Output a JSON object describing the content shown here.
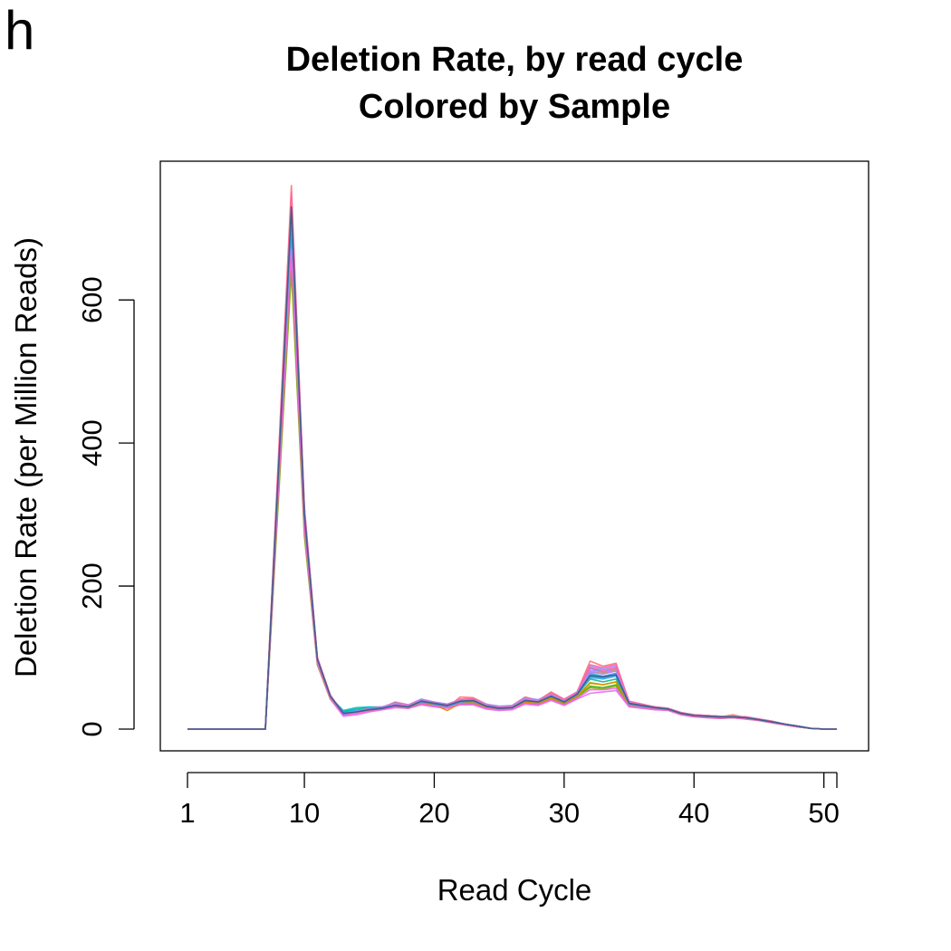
{
  "panel_label": "h",
  "chart_data": {
    "type": "line",
    "title": "Deletion Rate, by read cycle",
    "subtitle": "Colored by Sample",
    "xlabel": "Read Cycle",
    "ylabel": "Deletion Rate (per Million Reads)",
    "xlim": [
      1,
      51
    ],
    "ylim": [
      0,
      760
    ],
    "x_ticks": [
      1,
      10,
      20,
      30,
      40,
      50,
      51
    ],
    "x_tick_labels": [
      "1",
      "10",
      "20",
      "30",
      "40",
      "50",
      ""
    ],
    "y_ticks": [
      0,
      200,
      400,
      600
    ],
    "y_tick_labels": [
      "0",
      "200",
      "400",
      "600"
    ],
    "grid": false,
    "legend": "none",
    "colors": [
      "#f8766d",
      "#d89000",
      "#a3a500",
      "#39b600",
      "#00bf7d",
      "#00bfc4",
      "#00b0f6",
      "#9590ff",
      "#e76bf3",
      "#ff62bc",
      "#c77cff",
      "#7cae00",
      "#00a9ff",
      "#ff6c91",
      "#e58700",
      "#619cff",
      "#b983ff",
      "#35a2ff",
      "#f564e3",
      "#3c5a7a"
    ],
    "x": [
      1,
      2,
      3,
      4,
      5,
      6,
      7,
      8,
      9,
      10,
      11,
      12,
      13,
      14,
      15,
      16,
      17,
      18,
      19,
      20,
      21,
      22,
      23,
      24,
      25,
      26,
      27,
      28,
      29,
      30,
      31,
      32,
      33,
      34,
      35,
      36,
      37,
      38,
      39,
      40,
      41,
      42,
      43,
      44,
      45,
      46,
      47,
      48,
      49,
      50,
      51
    ],
    "base_profile": [
      0,
      0,
      0,
      0,
      0,
      0,
      0,
      350,
      690,
      290,
      95,
      45,
      22,
      25,
      28,
      30,
      33,
      32,
      38,
      35,
      33,
      38,
      38,
      32,
      30,
      31,
      40,
      38,
      45,
      38,
      48,
      72,
      70,
      75,
      35,
      32,
      30,
      28,
      22,
      18,
      18,
      17,
      17,
      16,
      13,
      10,
      7,
      4,
      1,
      0,
      0
    ],
    "series": [
      {
        "values": [
          0,
          0,
          0,
          0,
          0,
          0,
          0,
          380,
          760,
          310,
          100,
          48,
          20,
          25,
          30,
          30,
          38,
          34,
          40,
          35,
          30,
          45,
          44,
          35,
          30,
          33,
          45,
          40,
          52,
          42,
          52,
          95,
          88,
          92,
          38,
          35,
          30,
          28,
          22,
          20,
          18,
          17,
          20,
          16,
          13,
          10,
          6,
          3,
          1,
          0,
          0
        ]
      },
      {
        "values": [
          0,
          0,
          0,
          0,
          0,
          0,
          0,
          360,
          720,
          300,
          96,
          46,
          24,
          25,
          28,
          30,
          34,
          32,
          40,
          36,
          31,
          40,
          40,
          32,
          28,
          30,
          42,
          38,
          48,
          40,
          50,
          80,
          78,
          82,
          36,
          32,
          30,
          28,
          20,
          18,
          16,
          15,
          16,
          14,
          12,
          9,
          6,
          3,
          1,
          0,
          0
        ]
      },
      {
        "values": [
          0,
          0,
          0,
          0,
          0,
          0,
          0,
          340,
          680,
          285,
          93,
          44,
          22,
          24,
          27,
          29,
          32,
          30,
          36,
          34,
          32,
          36,
          37,
          31,
          29,
          30,
          38,
          36,
          44,
          37,
          46,
          65,
          62,
          66,
          34,
          31,
          29,
          27,
          21,
          18,
          18,
          17,
          17,
          15,
          12,
          9,
          6,
          3,
          1,
          0,
          0
        ]
      },
      {
        "values": [
          0,
          0,
          0,
          0,
          0,
          0,
          0,
          330,
          660,
          280,
          92,
          43,
          21,
          24,
          27,
          29,
          31,
          30,
          35,
          33,
          31,
          35,
          36,
          30,
          28,
          29,
          37,
          35,
          43,
          36,
          45,
          60,
          58,
          62,
          33,
          30,
          28,
          27,
          21,
          18,
          18,
          18,
          17,
          15,
          13,
          10,
          6,
          3,
          1,
          0,
          0
        ]
      },
      {
        "values": [
          0,
          0,
          0,
          0,
          0,
          0,
          0,
          345,
          690,
          290,
          94,
          44,
          25,
          28,
          30,
          31,
          34,
          31,
          38,
          35,
          33,
          37,
          38,
          33,
          30,
          31,
          40,
          38,
          45,
          38,
          48,
          70,
          66,
          70,
          35,
          32,
          30,
          28,
          22,
          19,
          18,
          17,
          17,
          16,
          13,
          10,
          7,
          4,
          1,
          0,
          0
        ]
      },
      {
        "values": [
          0,
          0,
          0,
          0,
          0,
          0,
          0,
          360,
          720,
          300,
          97,
          45,
          26,
          30,
          31,
          31,
          36,
          33,
          40,
          36,
          34,
          39,
          40,
          33,
          31,
          32,
          41,
          39,
          47,
          39,
          50,
          78,
          74,
          78,
          36,
          33,
          30,
          28,
          22,
          19,
          18,
          17,
          17,
          16,
          13,
          10,
          7,
          4,
          1,
          0,
          0
        ]
      },
      {
        "values": [
          0,
          0,
          0,
          0,
          0,
          0,
          0,
          365,
          730,
          305,
          98,
          46,
          24,
          26,
          29,
          30,
          35,
          33,
          41,
          37,
          35,
          40,
          41,
          34,
          31,
          32,
          42,
          40,
          48,
          40,
          51,
          85,
          80,
          85,
          38,
          34,
          31,
          29,
          23,
          20,
          19,
          18,
          18,
          17,
          14,
          11,
          7,
          4,
          1,
          0,
          0
        ]
      },
      {
        "values": [
          0,
          0,
          0,
          0,
          0,
          0,
          0,
          370,
          740,
          305,
          99,
          47,
          23,
          25,
          29,
          31,
          37,
          34,
          42,
          38,
          35,
          41,
          42,
          35,
          32,
          33,
          44,
          41,
          50,
          41,
          52,
          88,
          84,
          88,
          38,
          34,
          31,
          29,
          23,
          20,
          19,
          18,
          18,
          17,
          14,
          11,
          7,
          4,
          1,
          0,
          0
        ]
      },
      {
        "values": [
          0,
          0,
          0,
          0,
          0,
          0,
          0,
          330,
          650,
          275,
          90,
          42,
          18,
          20,
          24,
          27,
          30,
          29,
          34,
          31,
          29,
          34,
          34,
          28,
          26,
          27,
          35,
          33,
          40,
          33,
          42,
          50,
          52,
          54,
          31,
          29,
          27,
          26,
          20,
          17,
          16,
          15,
          16,
          14,
          12,
          9,
          6,
          3,
          1,
          0,
          0
        ]
      },
      {
        "values": [
          0,
          0,
          0,
          0,
          0,
          0,
          0,
          375,
          750,
          310,
          100,
          47,
          22,
          25,
          29,
          31,
          36,
          33,
          41,
          37,
          34,
          42,
          43,
          34,
          31,
          32,
          43,
          40,
          50,
          41,
          52,
          90,
          86,
          90,
          39,
          35,
          31,
          29,
          23,
          20,
          19,
          18,
          18,
          17,
          14,
          11,
          7,
          4,
          1,
          0,
          0
        ]
      },
      {
        "values": [
          0,
          0,
          0,
          0,
          0,
          0,
          0,
          365,
          730,
          300,
          98,
          46,
          21,
          24,
          28,
          30,
          35,
          32,
          40,
          36,
          33,
          40,
          41,
          33,
          30,
          31,
          41,
          39,
          47,
          39,
          50,
          82,
          80,
          84,
          37,
          33,
          30,
          28,
          22,
          19,
          18,
          17,
          18,
          16,
          13,
          10,
          7,
          4,
          1,
          0,
          0
        ]
      },
      {
        "values": [
          0,
          0,
          0,
          0,
          0,
          0,
          0,
          320,
          640,
          270,
          90,
          42,
          21,
          23,
          27,
          29,
          31,
          29,
          35,
          33,
          31,
          35,
          35,
          30,
          28,
          29,
          37,
          35,
          42,
          35,
          45,
          58,
          56,
          60,
          32,
          30,
          28,
          27,
          21,
          18,
          17,
          16,
          16,
          15,
          12,
          9,
          6,
          3,
          1,
          0,
          0
        ]
      },
      {
        "values": [
          0,
          0,
          0,
          0,
          0,
          0,
          0,
          355,
          710,
          295,
          96,
          45,
          23,
          25,
          28,
          30,
          33,
          31,
          38,
          35,
          32,
          38,
          39,
          32,
          29,
          30,
          40,
          38,
          46,
          38,
          48,
          74,
          72,
          76,
          35,
          32,
          30,
          28,
          22,
          19,
          18,
          17,
          17,
          16,
          13,
          10,
          7,
          4,
          1,
          0,
          0
        ]
      },
      {
        "values": [
          0,
          0,
          0,
          0,
          0,
          0,
          0,
          370,
          745,
          305,
          99,
          47,
          22,
          25,
          29,
          30,
          36,
          33,
          40,
          36,
          33,
          41,
          42,
          34,
          31,
          32,
          42,
          40,
          49,
          40,
          51,
          86,
          82,
          86,
          38,
          34,
          31,
          29,
          23,
          20,
          19,
          18,
          18,
          17,
          14,
          11,
          7,
          4,
          1,
          0,
          0
        ]
      },
      {
        "values": [
          0,
          0,
          0,
          0,
          0,
          0,
          0,
          340,
          680,
          285,
          93,
          44,
          22,
          25,
          26,
          28,
          32,
          30,
          37,
          34,
          26,
          36,
          37,
          31,
          29,
          30,
          38,
          36,
          44,
          37,
          46,
          64,
          62,
          66,
          34,
          31,
          29,
          27,
          21,
          18,
          18,
          17,
          17,
          15,
          13,
          10,
          6,
          3,
          1,
          0,
          0
        ]
      },
      {
        "values": [
          0,
          0,
          0,
          0,
          0,
          0,
          0,
          355,
          715,
          298,
          97,
          45,
          22,
          25,
          28,
          30,
          34,
          32,
          39,
          36,
          33,
          39,
          40,
          33,
          30,
          31,
          41,
          38,
          47,
          39,
          49,
          76,
          74,
          78,
          36,
          33,
          30,
          28,
          22,
          19,
          18,
          17,
          17,
          16,
          13,
          10,
          7,
          4,
          1,
          0,
          0
        ]
      },
      {
        "values": [
          0,
          0,
          0,
          0,
          0,
          0,
          0,
          360,
          725,
          300,
          98,
          46,
          22,
          25,
          28,
          30,
          35,
          32,
          40,
          36,
          33,
          40,
          41,
          33,
          30,
          31,
          42,
          39,
          48,
          39,
          50,
          80,
          77,
          81,
          37,
          33,
          30,
          28,
          22,
          19,
          18,
          17,
          17,
          16,
          13,
          10,
          7,
          4,
          1,
          0,
          0
        ]
      },
      {
        "values": [
          0,
          0,
          0,
          0,
          0,
          0,
          0,
          350,
          700,
          292,
          95,
          45,
          21,
          24,
          28,
          30,
          33,
          31,
          38,
          35,
          32,
          38,
          39,
          32,
          29,
          30,
          40,
          38,
          46,
          38,
          48,
          72,
          70,
          74,
          35,
          32,
          30,
          28,
          22,
          19,
          18,
          17,
          17,
          16,
          13,
          10,
          7,
          4,
          1,
          0,
          0
        ]
      },
      {
        "values": [
          0,
          0,
          0,
          0,
          0,
          0,
          0,
          335,
          670,
          280,
          92,
          43,
          19,
          22,
          25,
          28,
          31,
          29,
          35,
          32,
          30,
          35,
          35,
          29,
          27,
          28,
          36,
          34,
          41,
          34,
          43,
          55,
          55,
          57,
          32,
          30,
          28,
          27,
          21,
          18,
          17,
          16,
          16,
          15,
          12,
          9,
          6,
          3,
          1,
          0,
          0
        ]
      },
      {
        "values": [
          0,
          0,
          0,
          0,
          0,
          0,
          0,
          360,
          730,
          300,
          98,
          46,
          22,
          24,
          27,
          29,
          33,
          31,
          39,
          36,
          33,
          39,
          40,
          32,
          29,
          30,
          40,
          38,
          46,
          38,
          49,
          75,
          73,
          76,
          36,
          33,
          30,
          28,
          22,
          19,
          18,
          17,
          17,
          16,
          13,
          10,
          7,
          4,
          1,
          0,
          0
        ]
      }
    ]
  }
}
